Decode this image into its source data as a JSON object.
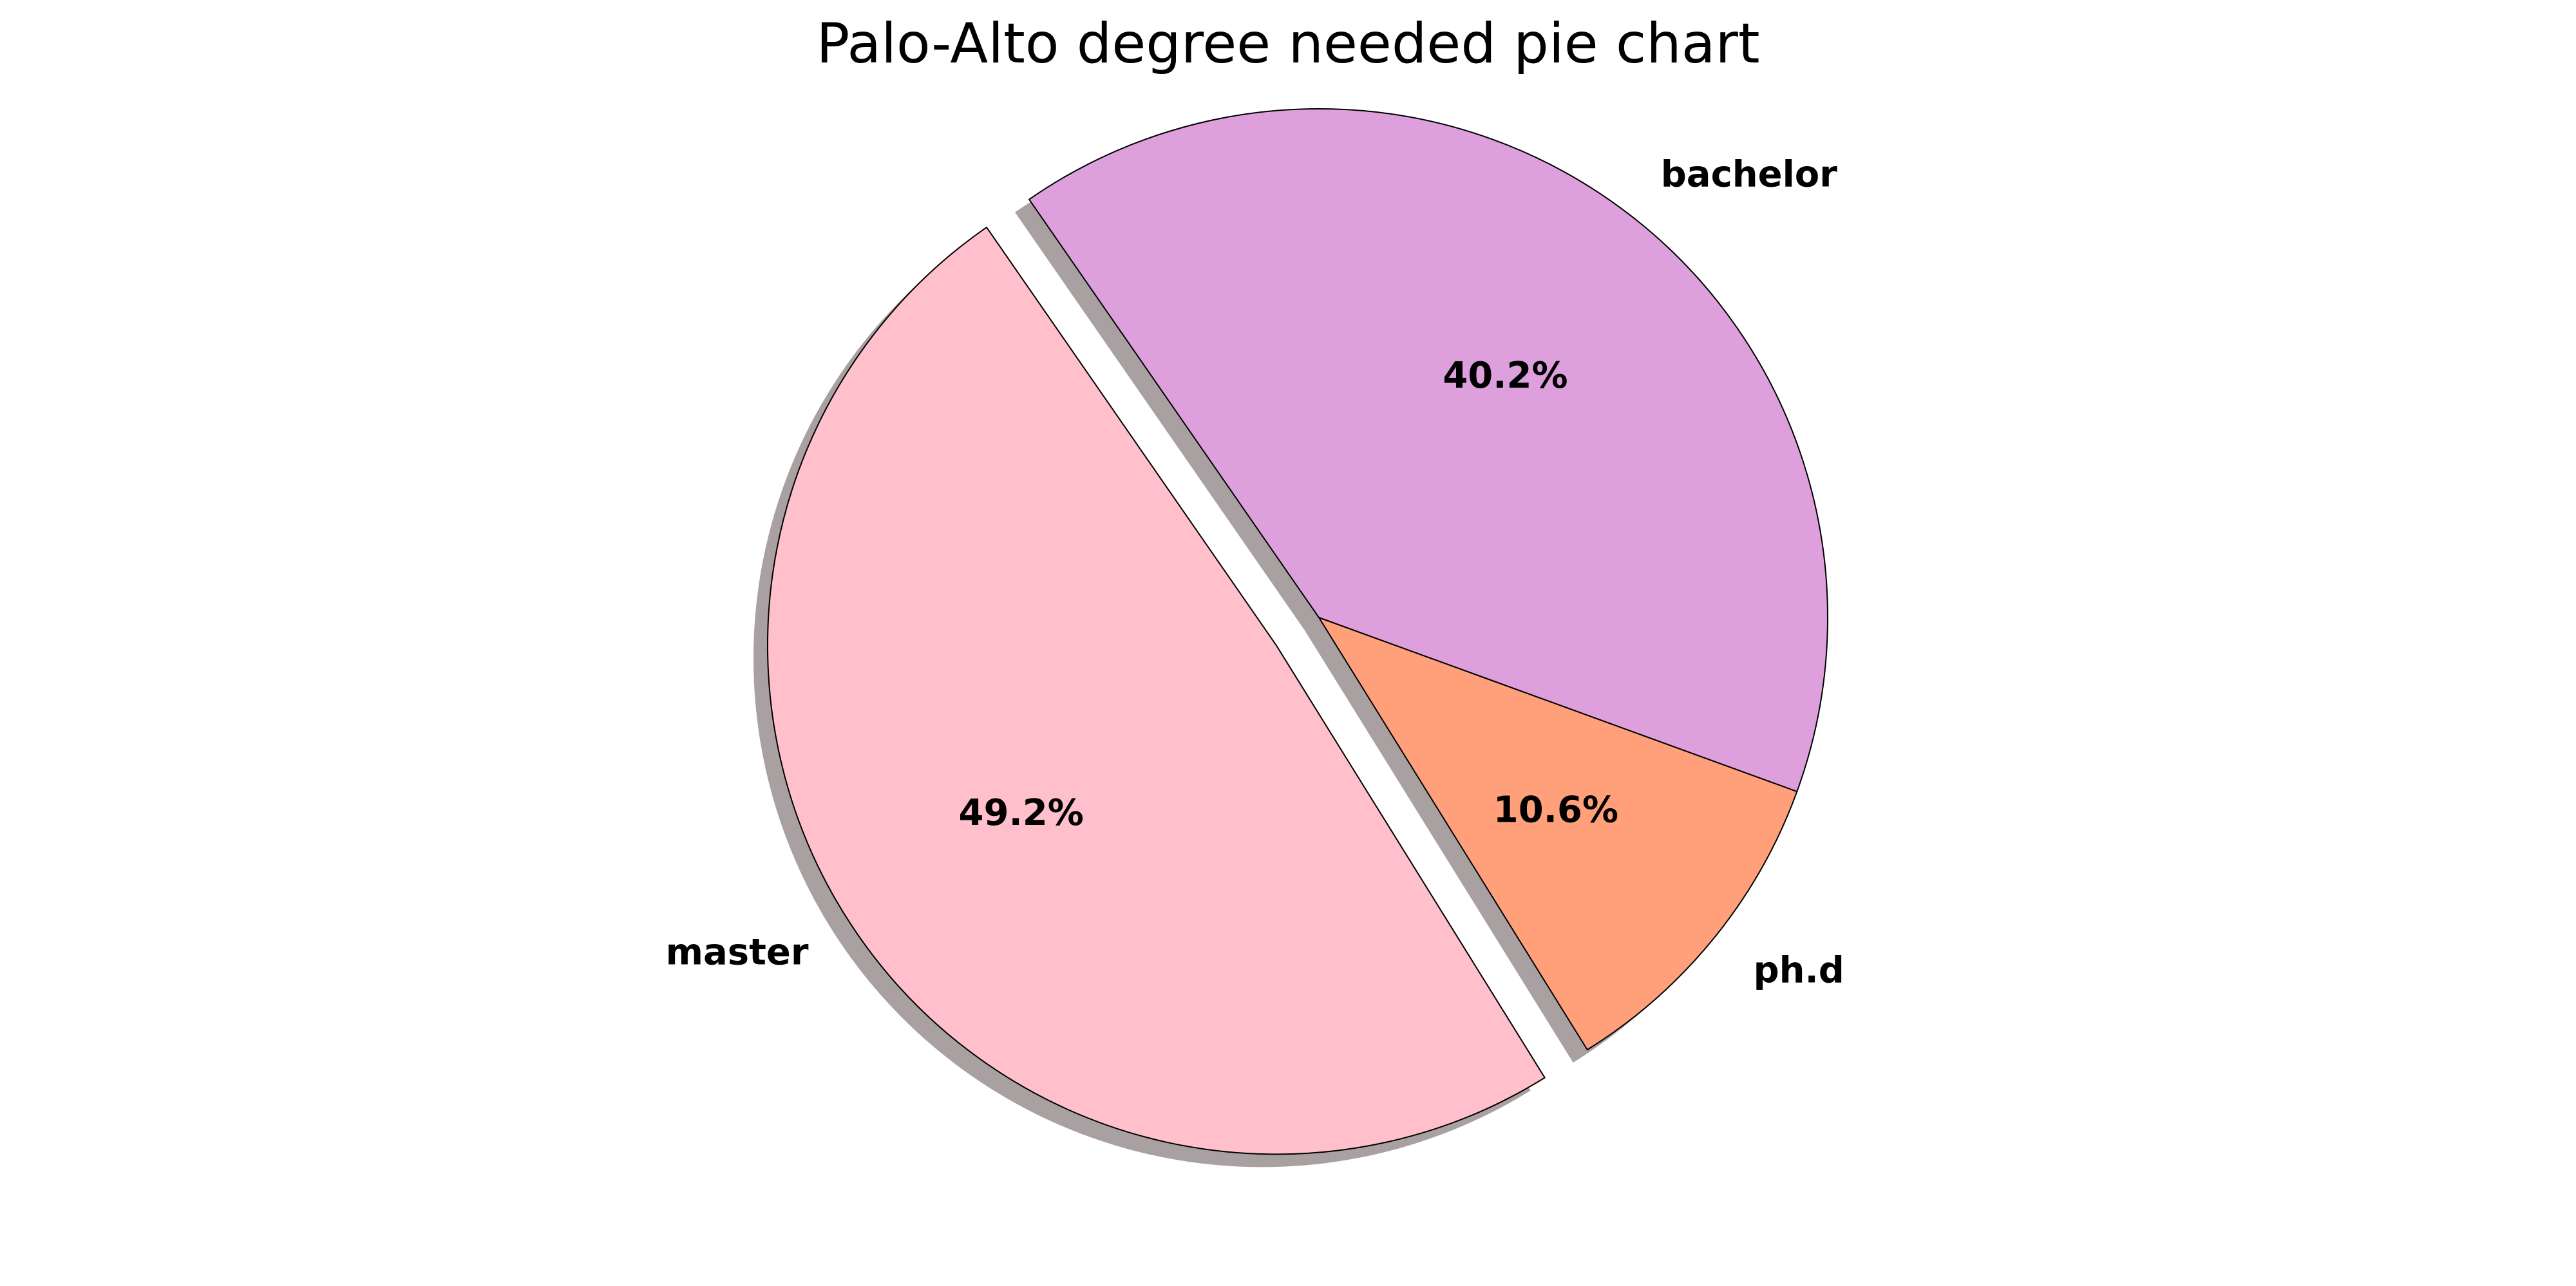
{
  "chart_data": {
    "type": "pie",
    "title": "Palo-Alto degree needed pie chart",
    "slices": [
      {
        "label": "bachelor",
        "value": 40.2,
        "pct_label": "40.2%",
        "color": "#DDA0DD",
        "exploded": false
      },
      {
        "label": "master",
        "value": 49.2,
        "pct_label": "49.2%",
        "color": "#FFC0CB",
        "exploded": true
      },
      {
        "label": "ph.d",
        "value": 10.6,
        "pct_label": "10.6%",
        "color": "#FFA07A",
        "exploded": false
      }
    ],
    "shadow": true,
    "shadow_color": "#A9A0A2",
    "edge_color": "#000000",
    "legend": "none"
  }
}
